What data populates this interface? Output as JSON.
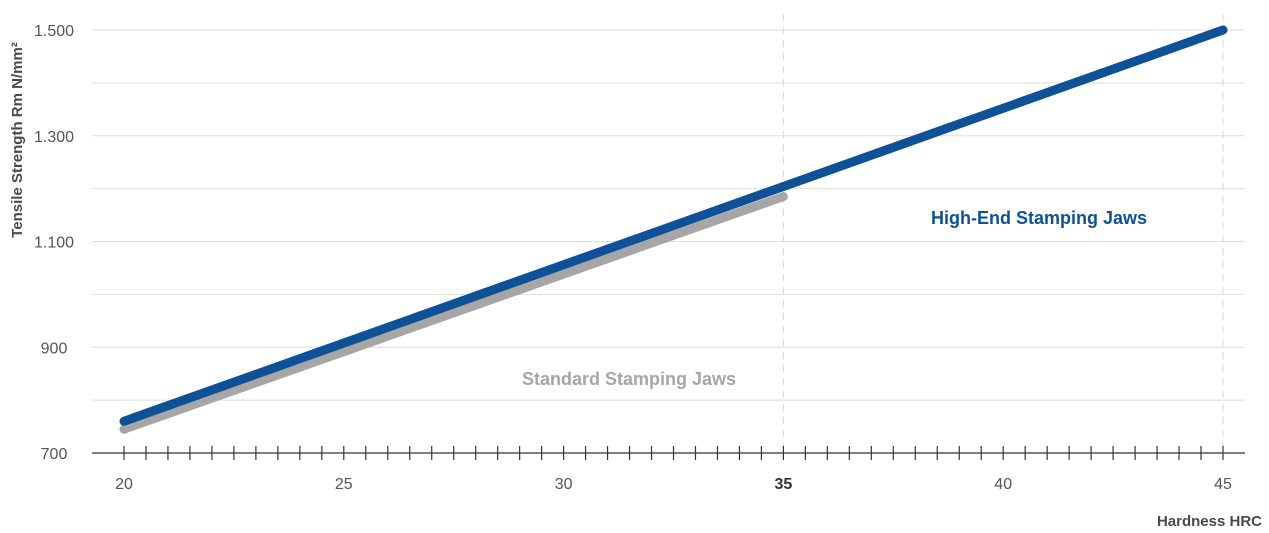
{
  "chart_data": {
    "type": "line",
    "xlabel": "Hardness HRC",
    "ylabel": "Tensile Strength Rm N/mm²",
    "xlim": [
      20,
      45
    ],
    "ylim": [
      700,
      1500
    ],
    "x_ticks": [
      20,
      25,
      30,
      35,
      40,
      45
    ],
    "x_tick_labels": [
      "20",
      "25",
      "30",
      "35",
      "40",
      "45"
    ],
    "x_minor_step": 0.5,
    "x_highlight": 35,
    "y_ticks": [
      700,
      900,
      1100,
      1300,
      1500
    ],
    "y_tick_labels": [
      "700",
      "900",
      "1.100",
      "1.300",
      "1.500"
    ],
    "grid": true,
    "series": [
      {
        "name": "Standard Stamping Jaws",
        "color": "#a6a6a6",
        "x": [
          20,
          35
        ],
        "y": [
          745,
          1185
        ]
      },
      {
        "name": "High-End Stamping Jaws",
        "color": "#0e5196",
        "x": [
          20,
          45
        ],
        "y": [
          760,
          1500
        ]
      }
    ]
  }
}
